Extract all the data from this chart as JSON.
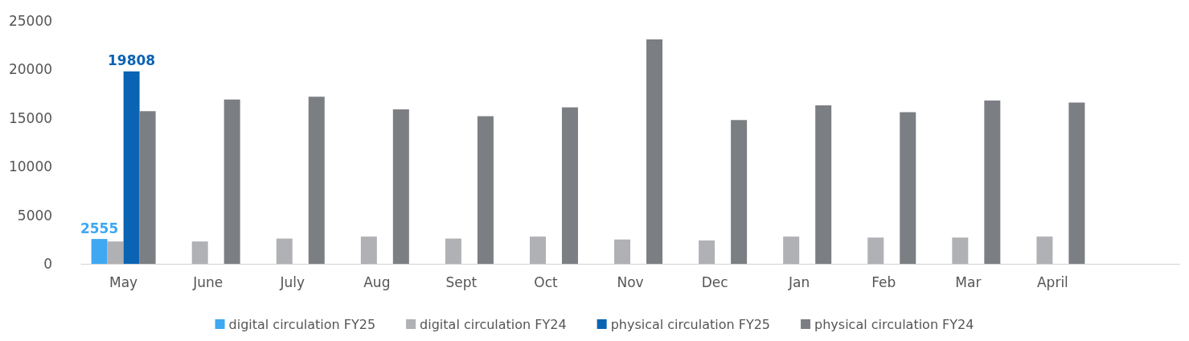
{
  "chart_data": {
    "type": "bar",
    "categories": [
      "May",
      "June",
      "July",
      "Aug",
      "Sept",
      "Oct",
      "Nov",
      "Dec",
      "Jan",
      "Feb",
      "Mar",
      "April",
      null
    ],
    "series": [
      {
        "name": "digital circulation FY25",
        "color": "#3ea8f2",
        "values": [
          2555,
          null,
          null,
          null,
          null,
          null,
          null,
          null,
          null,
          null,
          null,
          null,
          null
        ],
        "value_labels": [
          "2555",
          null,
          null,
          null,
          null,
          null,
          null,
          null,
          null,
          null,
          null,
          null,
          null
        ]
      },
      {
        "name": "digital circulation FY24",
        "color": "#b0b1b4",
        "values": [
          2300,
          2300,
          2600,
          2800,
          2600,
          2800,
          2500,
          2400,
          2800,
          2700,
          2700,
          2800,
          null
        ]
      },
      {
        "name": "physical circulation FY25",
        "color": "#0b63b3",
        "values": [
          19808,
          null,
          null,
          null,
          null,
          null,
          null,
          null,
          null,
          null,
          null,
          null,
          null
        ],
        "value_labels": [
          "19808",
          null,
          null,
          null,
          null,
          null,
          null,
          null,
          null,
          null,
          null,
          null,
          null
        ]
      },
      {
        "name": "physical circulation FY24",
        "color": "#7b7e83",
        "values": [
          15700,
          16900,
          17200,
          15900,
          15200,
          16100,
          23100,
          14800,
          16300,
          15600,
          16800,
          16600,
          null
        ]
      }
    ],
    "ylim": [
      0,
      25000
    ],
    "yticks": [
      0,
      5000,
      10000,
      15000,
      20000,
      25000
    ],
    "grid": false,
    "legend": "bottom"
  }
}
